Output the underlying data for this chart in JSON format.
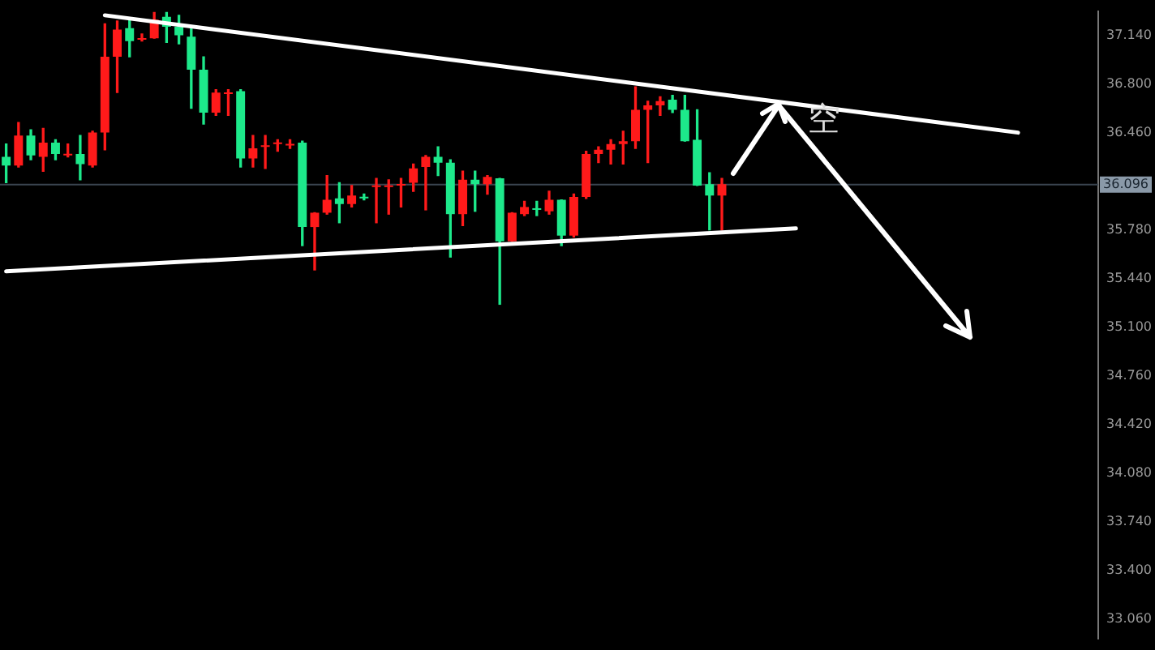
{
  "chart_data": {
    "type": "candlestick",
    "categories": [
      null,
      null,
      null,
      null,
      null,
      null,
      null,
      null,
      null,
      null,
      null,
      null,
      null,
      null,
      null,
      null,
      null,
      null,
      null,
      null,
      null,
      null,
      null,
      null,
      null,
      null,
      null,
      null,
      null,
      null,
      null,
      null,
      null,
      null,
      null,
      null,
      null,
      null,
      null,
      null,
      null,
      null,
      null,
      null,
      null,
      null,
      null,
      null,
      null,
      null,
      null,
      null,
      null,
      null,
      null,
      null,
      null,
      null,
      null,
      null,
      null,
      null,
      null,
      null,
      null,
      null,
      null,
      null,
      null,
      null,
      null,
      null,
      null,
      null,
      null,
      null,
      null,
      null,
      null,
      null,
      null,
      null,
      null,
      null,
      null,
      null,
      null,
      null,
      null
    ],
    "ohlc": [
      [
        36.29,
        36.38,
        36.11,
        36.23
      ],
      [
        36.23,
        36.53,
        36.22,
        36.44
      ],
      [
        36.44,
        36.48,
        36.27,
        36.3
      ],
      [
        36.29,
        36.49,
        36.19,
        36.39
      ],
      [
        36.39,
        36.41,
        36.27,
        36.31
      ],
      [
        36.3,
        36.38,
        36.29,
        36.31
      ],
      [
        36.31,
        36.44,
        36.13,
        36.24
      ],
      [
        36.23,
        36.47,
        36.22,
        36.46
      ],
      [
        36.46,
        37.22,
        36.34,
        36.99
      ],
      [
        36.99,
        37.24,
        36.74,
        37.18
      ],
      [
        37.19,
        37.26,
        36.99,
        37.1
      ],
      [
        37.11,
        37.15,
        37.1,
        37.12
      ],
      [
        37.12,
        37.3,
        37.12,
        37.25
      ],
      [
        37.27,
        37.3,
        37.09,
        37.2
      ],
      [
        37.2,
        37.28,
        37.08,
        37.14
      ],
      [
        37.13,
        37.2,
        36.63,
        36.9
      ],
      [
        36.9,
        36.99,
        36.52,
        36.6
      ],
      [
        36.6,
        36.76,
        36.58,
        36.74
      ],
      [
        36.73,
        36.76,
        36.58,
        36.74
      ],
      [
        36.75,
        36.76,
        36.22,
        36.28
      ],
      [
        36.28,
        36.44,
        36.22,
        36.35
      ],
      [
        36.36,
        36.44,
        36.21,
        36.37
      ],
      [
        36.38,
        36.41,
        36.33,
        36.39
      ],
      [
        36.37,
        36.41,
        36.35,
        36.38
      ],
      [
        36.39,
        36.4,
        35.67,
        35.8
      ],
      [
        35.8,
        35.9,
        35.5,
        35.9
      ],
      [
        35.9,
        36.16,
        35.89,
        35.99
      ],
      [
        36.0,
        36.11,
        35.83,
        35.96
      ],
      [
        35.96,
        36.09,
        35.94,
        36.02
      ],
      [
        36.01,
        36.03,
        35.99,
        36.0
      ],
      [
        36.08,
        36.14,
        35.83,
        36.09
      ],
      [
        36.08,
        36.13,
        35.89,
        36.09
      ],
      [
        36.09,
        36.14,
        35.94,
        36.1
      ],
      [
        36.11,
        36.24,
        36.05,
        36.21
      ],
      [
        36.22,
        36.3,
        35.92,
        36.29
      ],
      [
        36.29,
        36.36,
        36.16,
        36.25
      ],
      [
        36.25,
        36.27,
        35.59,
        35.89
      ],
      [
        35.89,
        36.19,
        35.81,
        36.13
      ],
      [
        36.13,
        36.19,
        35.91,
        36.1
      ],
      [
        36.1,
        36.16,
        36.03,
        36.15
      ],
      [
        36.14,
        36.14,
        35.26,
        35.7
      ],
      [
        35.7,
        35.9,
        35.7,
        35.9
      ],
      [
        35.89,
        35.98,
        35.88,
        35.94
      ],
      [
        35.93,
        35.98,
        35.88,
        35.92
      ],
      [
        35.91,
        36.05,
        35.89,
        35.99
      ],
      [
        35.99,
        35.99,
        35.67,
        35.74
      ],
      [
        35.74,
        36.03,
        35.73,
        36.01
      ],
      [
        36.01,
        36.33,
        36.0,
        36.31
      ],
      [
        36.31,
        36.36,
        36.25,
        36.34
      ],
      [
        36.34,
        36.41,
        36.24,
        36.38
      ],
      [
        36.38,
        36.47,
        36.24,
        36.4
      ],
      [
        36.4,
        36.78,
        36.35,
        36.62
      ],
      [
        36.62,
        36.68,
        36.25,
        36.65
      ],
      [
        36.65,
        36.71,
        36.58,
        36.68
      ],
      [
        36.69,
        36.72,
        36.6,
        36.62
      ],
      [
        36.62,
        36.72,
        36.4,
        36.4
      ],
      [
        36.41,
        36.62,
        36.09,
        36.09
      ],
      [
        36.1,
        36.18,
        35.78,
        36.02
      ],
      [
        36.02,
        36.14,
        35.78,
        36.1
      ],
      null,
      null,
      null,
      null,
      null,
      null,
      null,
      null,
      null,
      null,
      null,
      null,
      null,
      null,
      null,
      null,
      null,
      null,
      null,
      null,
      null,
      null,
      null,
      null,
      null,
      null,
      null,
      null,
      null,
      null
    ],
    "colors": [
      "#1de98b",
      "#ff1a1a",
      "#1de98b",
      "#ff1a1a",
      "#1de98b",
      "#ff1a1a",
      "#1de98b",
      "#ff1a1a",
      "#ff1a1a",
      "#ff1a1a",
      "#1de98b",
      "#ff1a1a",
      "#ff1a1a",
      "#1de98b",
      "#1de98b",
      "#1de98b",
      "#1de98b",
      "#ff1a1a",
      "#ff1a1a",
      "#1de98b",
      "#ff1a1a",
      "#ff1a1a",
      "#ff1a1a",
      "#ff1a1a",
      "#1de98b",
      "#ff1a1a",
      "#ff1a1a",
      "#1de98b",
      "#ff1a1a",
      "#1de98b",
      "#ff1a1a",
      "#ff1a1a",
      "#ff1a1a",
      "#ff1a1a",
      "#ff1a1a",
      "#1de98b",
      "#1de98b",
      "#ff1a1a",
      "#1de98b",
      "#ff1a1a",
      "#1de98b",
      "#ff1a1a",
      "#ff1a1a",
      "#1de98b",
      "#ff1a1a",
      "#1de98b",
      "#ff1a1a",
      "#ff1a1a",
      "#ff1a1a",
      "#ff1a1a",
      "#ff1a1a",
      "#ff1a1a",
      "#ff1a1a",
      "#ff1a1a",
      "#1de98b",
      "#1de98b",
      "#1de98b",
      "#1de98b",
      "#ff1a1a",
      null,
      null,
      null,
      null,
      null,
      null,
      null,
      null,
      null,
      null,
      null,
      null,
      null,
      null,
      null,
      null,
      null,
      null,
      null,
      null,
      null,
      null,
      null,
      null,
      null,
      null,
      null,
      null,
      null,
      null
    ],
    "series": [
      {
        "type": "line",
        "color": "#ffffff",
        "values": [
          null,
          null,
          null,
          null,
          null,
          null,
          null,
          null,
          37.28,
          null,
          null,
          null,
          null,
          null,
          null,
          null,
          null,
          null,
          null,
          null,
          null,
          null,
          null,
          null,
          null,
          null,
          null,
          null,
          null,
          null,
          null,
          null,
          null,
          null,
          null,
          null,
          null,
          null,
          null,
          null,
          null,
          null,
          null,
          null,
          null,
          null,
          null,
          null,
          null,
          null,
          null,
          null,
          null,
          null,
          null,
          null,
          null,
          null,
          null,
          null,
          null,
          null,
          null,
          null,
          null,
          null,
          null,
          null,
          null,
          null,
          null,
          null,
          null,
          null,
          null,
          null,
          null,
          null,
          null,
          null,
          null,
          null,
          36.46,
          null,
          null,
          null,
          null,
          null,
          null
        ]
      },
      {
        "type": "line",
        "color": "#ffffff",
        "values": [
          35.49,
          null,
          null,
          null,
          null,
          null,
          null,
          null,
          null,
          null,
          null,
          null,
          null,
          null,
          null,
          null,
          null,
          null,
          null,
          null,
          null,
          null,
          null,
          null,
          null,
          null,
          null,
          null,
          null,
          null,
          null,
          null,
          null,
          null,
          null,
          null,
          null,
          null,
          null,
          null,
          null,
          null,
          null,
          null,
          null,
          null,
          null,
          null,
          null,
          null,
          null,
          null,
          null,
          null,
          null,
          null,
          null,
          null,
          null,
          null,
          null,
          null,
          null,
          null,
          35.79,
          null,
          null,
          null,
          null,
          null,
          null,
          null,
          null,
          null,
          null,
          null,
          null,
          null,
          null,
          null,
          null,
          null,
          null,
          null,
          null,
          null,
          null,
          null,
          null
        ]
      }
    ],
    "ylim": [
      32.92,
      37.31
    ],
    "yticks": [
      {
        "value": 37.14,
        "label": "37.140"
      },
      {
        "value": 36.8,
        "label": "36.800"
      },
      {
        "value": 36.46,
        "label": "36.460"
      },
      {
        "value": 35.78,
        "label": "35.780"
      },
      {
        "value": 35.44,
        "label": "35.440"
      },
      {
        "value": 35.1,
        "label": "35.100"
      },
      {
        "value": 34.76,
        "label": "34.760"
      },
      {
        "value": 34.42,
        "label": "34.420"
      },
      {
        "value": 34.08,
        "label": "34.080"
      },
      {
        "value": 33.74,
        "label": "33.740"
      },
      {
        "value": 33.4,
        "label": "33.400"
      },
      {
        "value": 33.06,
        "label": "33.060"
      }
    ],
    "ref_lines": [
      {
        "axis": "y",
        "value": 36.096,
        "label": "36.096",
        "color": "#3a4550"
      }
    ],
    "annotations": [
      "空"
    ]
  }
}
